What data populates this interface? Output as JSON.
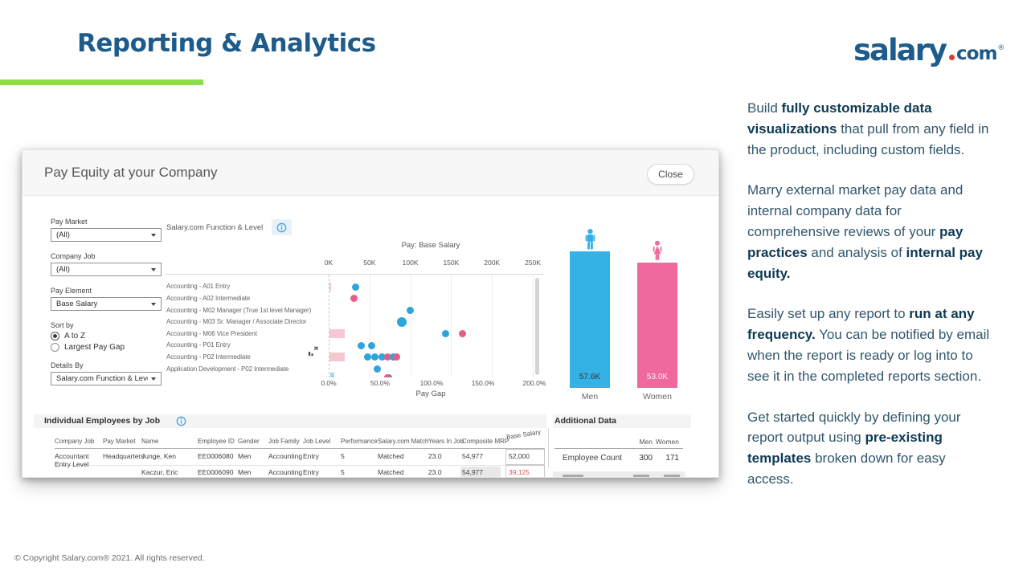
{
  "slide": {
    "title": "Reporting & Analytics",
    "accent_color": "#8bdc4e",
    "brand_color": "#1d5b8c",
    "logo": {
      "word": "salary",
      "tld": "com",
      "reg": "®",
      "dot_color": "#d93a32"
    },
    "footer": "© Copyright Salary.com® 2021. All rights reserved."
  },
  "feature_text": {
    "paragraphs": [
      {
        "segments": [
          {
            "t": "Build ",
            "b": false
          },
          {
            "t": "fully customizable data visualizations",
            "b": true
          },
          {
            "t": " that pull from any field in the product, including custom fields.",
            "b": false
          }
        ]
      },
      {
        "segments": [
          {
            "t": "Marry external market pay data and internal company data for comprehensive reviews of your ",
            "b": false
          },
          {
            "t": "pay practices",
            "b": true
          },
          {
            "t": " and analysis of ",
            "b": false
          },
          {
            "t": "internal pay equity.",
            "b": true
          }
        ]
      },
      {
        "segments": [
          {
            "t": "Easily set up any report to ",
            "b": false
          },
          {
            "t": "run at any frequency.",
            "b": true
          },
          {
            "t": " You can be notified by email when the report is ready or log into to see it in the completed reports section.",
            "b": false
          }
        ]
      },
      {
        "segments": [
          {
            "t": "Get started quickly by defining your report output using ",
            "b": false
          },
          {
            "t": "pre-existing templates",
            "b": true
          },
          {
            "t": " broken down for easy access.",
            "b": false
          }
        ]
      }
    ]
  },
  "dashboard": {
    "title": "Pay Equity at your Company",
    "close_label": "Close",
    "filters": [
      {
        "type": "select",
        "label": "Pay Market",
        "value": "(All)"
      },
      {
        "type": "select",
        "label": "Company Job",
        "value": "(All)"
      },
      {
        "type": "select",
        "label": "Pay Element",
        "value": "Base Salary"
      },
      {
        "type": "radio",
        "label": "Sort by",
        "options": [
          {
            "label": "A to Z",
            "selected": true
          },
          {
            "label": "Largest Pay Gap",
            "selected": false
          }
        ]
      },
      {
        "type": "select",
        "label": "Details By",
        "value": "Salary.com Function & Level"
      }
    ],
    "sections": {
      "employees_title": "Individual Employees by Job",
      "additional_title": "Additional Data"
    },
    "employee_table": {
      "columns": [
        "Company Job",
        "Pay Market",
        "Name",
        "Employee ID",
        "Gender",
        "Job Family",
        "Job Level",
        "Performance",
        "Salary.com Match",
        "Years In Job",
        "Composite MRP",
        "Base Salary"
      ],
      "rows": [
        {
          "cells": [
            "Accountant Entry Level",
            "Headquarters",
            "Junge, Ken",
            "EE0006080",
            "Men",
            "Accounting",
            "Entry",
            "5",
            "Matched",
            "23.0",
            "54,977",
            "52,000"
          ],
          "salary_alert": false,
          "mrp_highlight": false
        },
        {
          "cells": [
            "",
            "",
            "Kaczur, Eric",
            "EE0006090",
            "Men",
            "Accounting",
            "Entry",
            "5",
            "Matched",
            "23.0",
            "54,977",
            "39,125"
          ],
          "salary_alert": true,
          "mrp_highlight": true
        }
      ],
      "alert_color": "#d9534f"
    },
    "additional_data": {
      "col_headers": [
        "Men",
        "Women"
      ],
      "rows": [
        {
          "label": "Employee Count",
          "men": "300",
          "women": "171"
        }
      ]
    }
  },
  "chart_data": [
    {
      "id": "pay-equity-scatter",
      "type": "scatter",
      "title": "Salary.com Function & Level",
      "top_axis": {
        "label": "Pay: Base Salary",
        "ticks": [
          "0K",
          "50K",
          "100K",
          "150K",
          "200K",
          "250K"
        ],
        "range_k": [
          0,
          250
        ]
      },
      "bottom_axis": {
        "label": "Pay Gap",
        "ticks": [
          "0.0%",
          "50.0%",
          "100.0%",
          "150.0%",
          "200.0%"
        ],
        "range_pct": [
          0,
          200
        ]
      },
      "colors": {
        "men": "#2ea4dd",
        "women": "#e75d88",
        "gap_bar": "#f7c6d3",
        "partial_bar": "#a9d7ef"
      },
      "rows": [
        {
          "label": "Accounting - A01 Entry",
          "gap_bar_pct": 2,
          "points": [
            {
              "series": "men",
              "value_k": 33
            }
          ]
        },
        {
          "label": "Accounting - A02 Intermediate",
          "gap_bar_pct": 0,
          "points": [
            {
              "series": "women",
              "value_k": 31
            }
          ]
        },
        {
          "label": "Accounting - M02 Manager (True 1st level Manager)",
          "gap_bar_pct": 0,
          "points": [
            {
              "series": "men",
              "value_k": 100
            }
          ]
        },
        {
          "label": "Accounting - M03 Sr. Manager / Associate Director",
          "gap_bar_pct": 0,
          "points": [
            {
              "series": "men",
              "value_k": 90,
              "size": "large"
            }
          ]
        },
        {
          "label": "Accounting - M06 Vice President",
          "gap_bar_pct": 15,
          "points": [
            {
              "series": "men",
              "value_k": 143
            },
            {
              "series": "women",
              "value_k": 164
            }
          ]
        },
        {
          "label": "Accounting - P01 Entry",
          "gap_bar_pct": 0,
          "points": [
            {
              "series": "men",
              "value_k": 40
            },
            {
              "series": "men",
              "value_k": 53
            }
          ]
        },
        {
          "label": "Accounting - P02 Intermediate",
          "gap_bar_pct": 15,
          "points": [
            {
              "series": "men",
              "value_k": 48
            },
            {
              "series": "men",
              "value_k": 57
            },
            {
              "series": "men",
              "value_k": 65
            },
            {
              "series": "women",
              "value_k": 72
            },
            {
              "series": "men",
              "value_k": 79
            },
            {
              "series": "women",
              "value_k": 83
            }
          ]
        },
        {
          "label": "Application Development - P02 Intermediate",
          "gap_bar_pct": 0,
          "points": [
            {
              "series": "men",
              "value_k": 60
            }
          ]
        }
      ],
      "partial_next_row": {
        "mini_bar_pct": 4,
        "points": [
          {
            "series": "men",
            "value_k": 74
          },
          {
            "series": "women",
            "value_k": 72
          }
        ]
      }
    },
    {
      "id": "avg-pay-by-gender",
      "type": "bar",
      "categories": [
        "Men",
        "Women"
      ],
      "values_k": [
        57.6,
        53.0
      ],
      "value_labels": [
        "57.6K",
        "53.0K"
      ],
      "colors": [
        "#35b2e5",
        "#f0699e"
      ],
      "ylim_k": [
        0,
        60
      ]
    }
  ]
}
